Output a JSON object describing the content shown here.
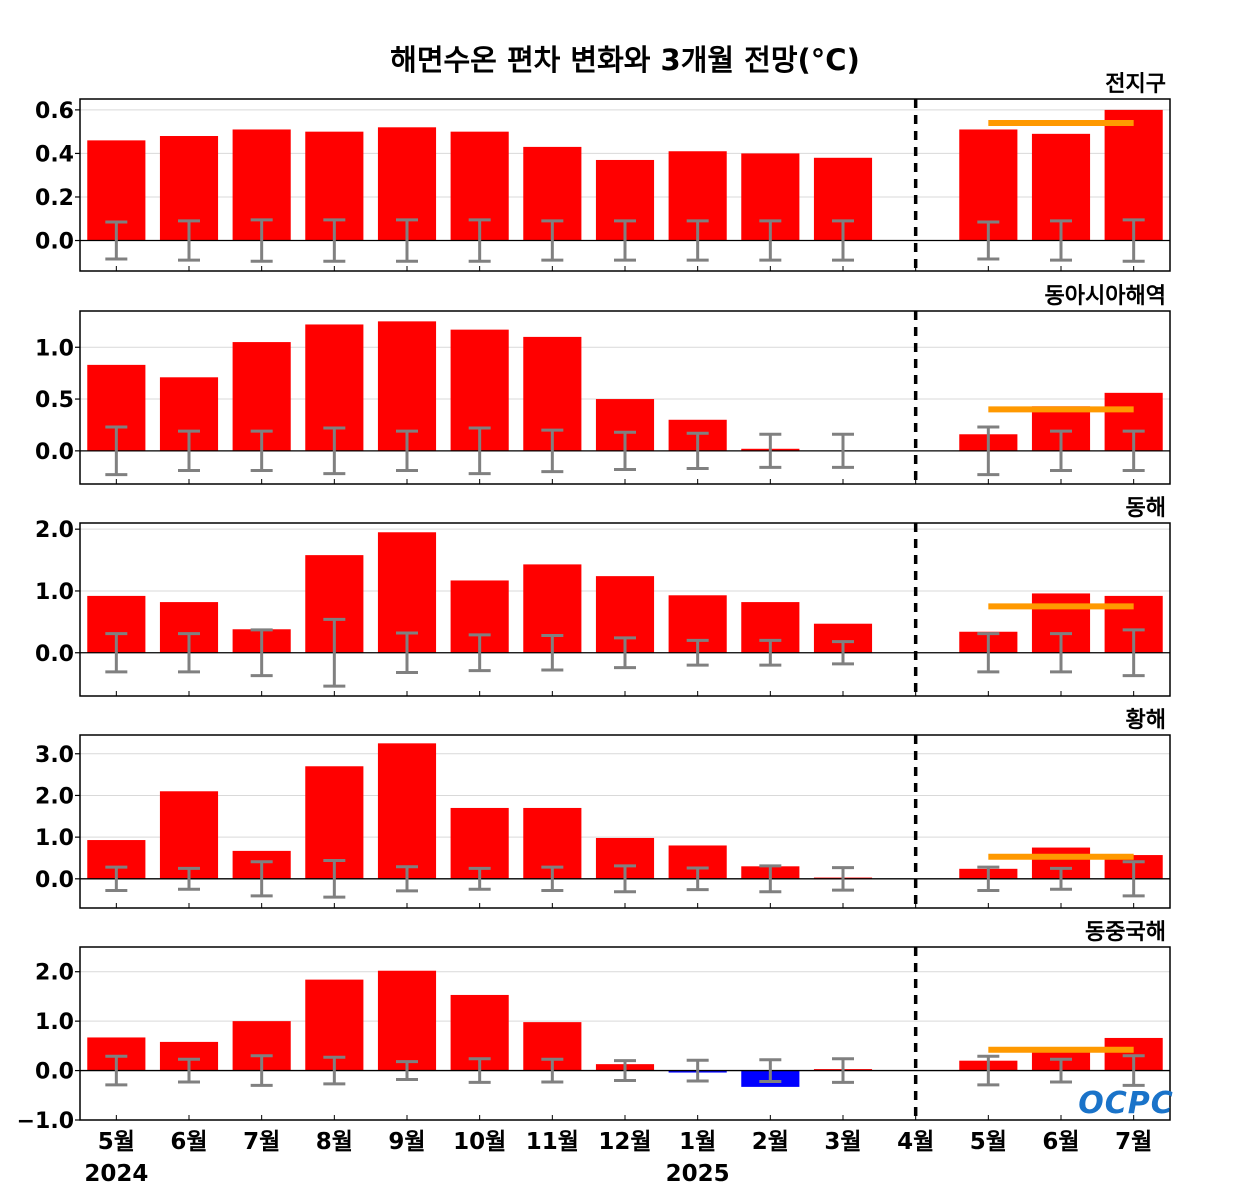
{
  "title": "해면수온 편차 변화와 3개월 전망(°C)",
  "logo_text": "OCPC",
  "colors": {
    "positive": "#ff0000",
    "negative": "#0000ff",
    "forecast_range": "#ff9900",
    "error_bar": "#808080",
    "zero_line": "#000000",
    "divider": "#000000"
  },
  "chart_data": {
    "type": "bar",
    "categories": [
      "5월",
      "6월",
      "7월",
      "8월",
      "9월",
      "10월",
      "11월",
      "12월",
      "1월",
      "2월",
      "3월",
      "4월",
      "5월",
      "6월",
      "7월"
    ],
    "year_labels": [
      {
        "label": "2024",
        "category_index": 0
      },
      {
        "label": "2025",
        "category_index": 8
      }
    ],
    "divider_after_category": "4월",
    "forecast_categories": [
      "5월",
      "6월",
      "7월"
    ],
    "panels": [
      {
        "name": "전지구",
        "ylim": [
          -0.14,
          0.65
        ],
        "yticks": [
          0.0,
          0.2,
          0.4,
          0.6
        ],
        "tick_labels": [
          "0.0",
          "0.2",
          "0.4",
          "0.6"
        ],
        "values": [
          0.46,
          0.48,
          0.51,
          0.5,
          0.52,
          0.5,
          0.43,
          0.37,
          0.41,
          0.4,
          0.38,
          0.0,
          0.51,
          0.49,
          0.6
        ],
        "error": [
          0.085,
          0.09,
          0.095,
          0.095,
          0.095,
          0.095,
          0.09,
          0.09,
          0.09,
          0.09,
          0.09,
          null,
          0.085,
          0.09,
          0.095
        ],
        "forecast_range": 0.54
      },
      {
        "name": "동아시아해역",
        "ylim": [
          -0.32,
          1.35
        ],
        "yticks": [
          0.0,
          0.5,
          1.0
        ],
        "tick_labels": [
          "0.0",
          "0.5",
          "1.0"
        ],
        "values": [
          0.83,
          0.71,
          1.05,
          1.22,
          1.25,
          1.17,
          1.1,
          0.5,
          0.3,
          0.02,
          0.0,
          0.0,
          0.16,
          0.43,
          0.56
        ],
        "error": [
          0.23,
          0.19,
          0.19,
          0.22,
          0.19,
          0.22,
          0.2,
          0.18,
          0.17,
          0.16,
          0.16,
          null,
          0.23,
          0.19,
          0.19
        ],
        "forecast_range": 0.4
      },
      {
        "name": "동해",
        "ylim": [
          -0.7,
          2.1
        ],
        "yticks": [
          0.0,
          1.0,
          2.0
        ],
        "tick_labels": [
          "0.0",
          "1.0",
          "2.0"
        ],
        "values": [
          0.92,
          0.82,
          0.38,
          1.58,
          1.95,
          1.17,
          1.43,
          1.24,
          0.93,
          0.82,
          0.47,
          0.0,
          0.34,
          0.96,
          0.92
        ],
        "error": [
          0.31,
          0.31,
          0.37,
          0.54,
          0.32,
          0.29,
          0.28,
          0.24,
          0.2,
          0.2,
          0.18,
          null,
          0.31,
          0.31,
          0.37
        ],
        "forecast_range": 0.75
      },
      {
        "name": "황해",
        "ylim": [
          -0.7,
          3.45
        ],
        "yticks": [
          0.0,
          1.0,
          2.0,
          3.0
        ],
        "tick_labels": [
          "0.0",
          "1.0",
          "2.0",
          "3.0"
        ],
        "values": [
          0.93,
          2.1,
          0.67,
          2.7,
          3.25,
          1.7,
          1.7,
          0.98,
          0.8,
          0.3,
          0.03,
          0.0,
          0.24,
          0.75,
          0.57
        ],
        "error": [
          0.28,
          0.25,
          0.41,
          0.44,
          0.29,
          0.25,
          0.28,
          0.31,
          0.26,
          0.31,
          0.27,
          null,
          0.28,
          0.25,
          0.41
        ],
        "forecast_range": 0.53
      },
      {
        "name": "동중국해",
        "ylim": [
          -1.0,
          2.5
        ],
        "yticks": [
          -1.0,
          0.0,
          1.0,
          2.0
        ],
        "tick_labels": [
          "−1.0",
          "0.0",
          "1.0",
          "2.0"
        ],
        "values": [
          0.67,
          0.58,
          1.0,
          1.84,
          2.02,
          1.53,
          0.98,
          0.13,
          -0.04,
          -0.33,
          0.03,
          0.0,
          0.2,
          0.4,
          0.66
        ],
        "error": [
          0.29,
          0.23,
          0.3,
          0.27,
          0.18,
          0.24,
          0.23,
          0.2,
          0.21,
          0.22,
          0.24,
          null,
          0.29,
          0.23,
          0.3
        ],
        "forecast_range": 0.42
      }
    ]
  }
}
